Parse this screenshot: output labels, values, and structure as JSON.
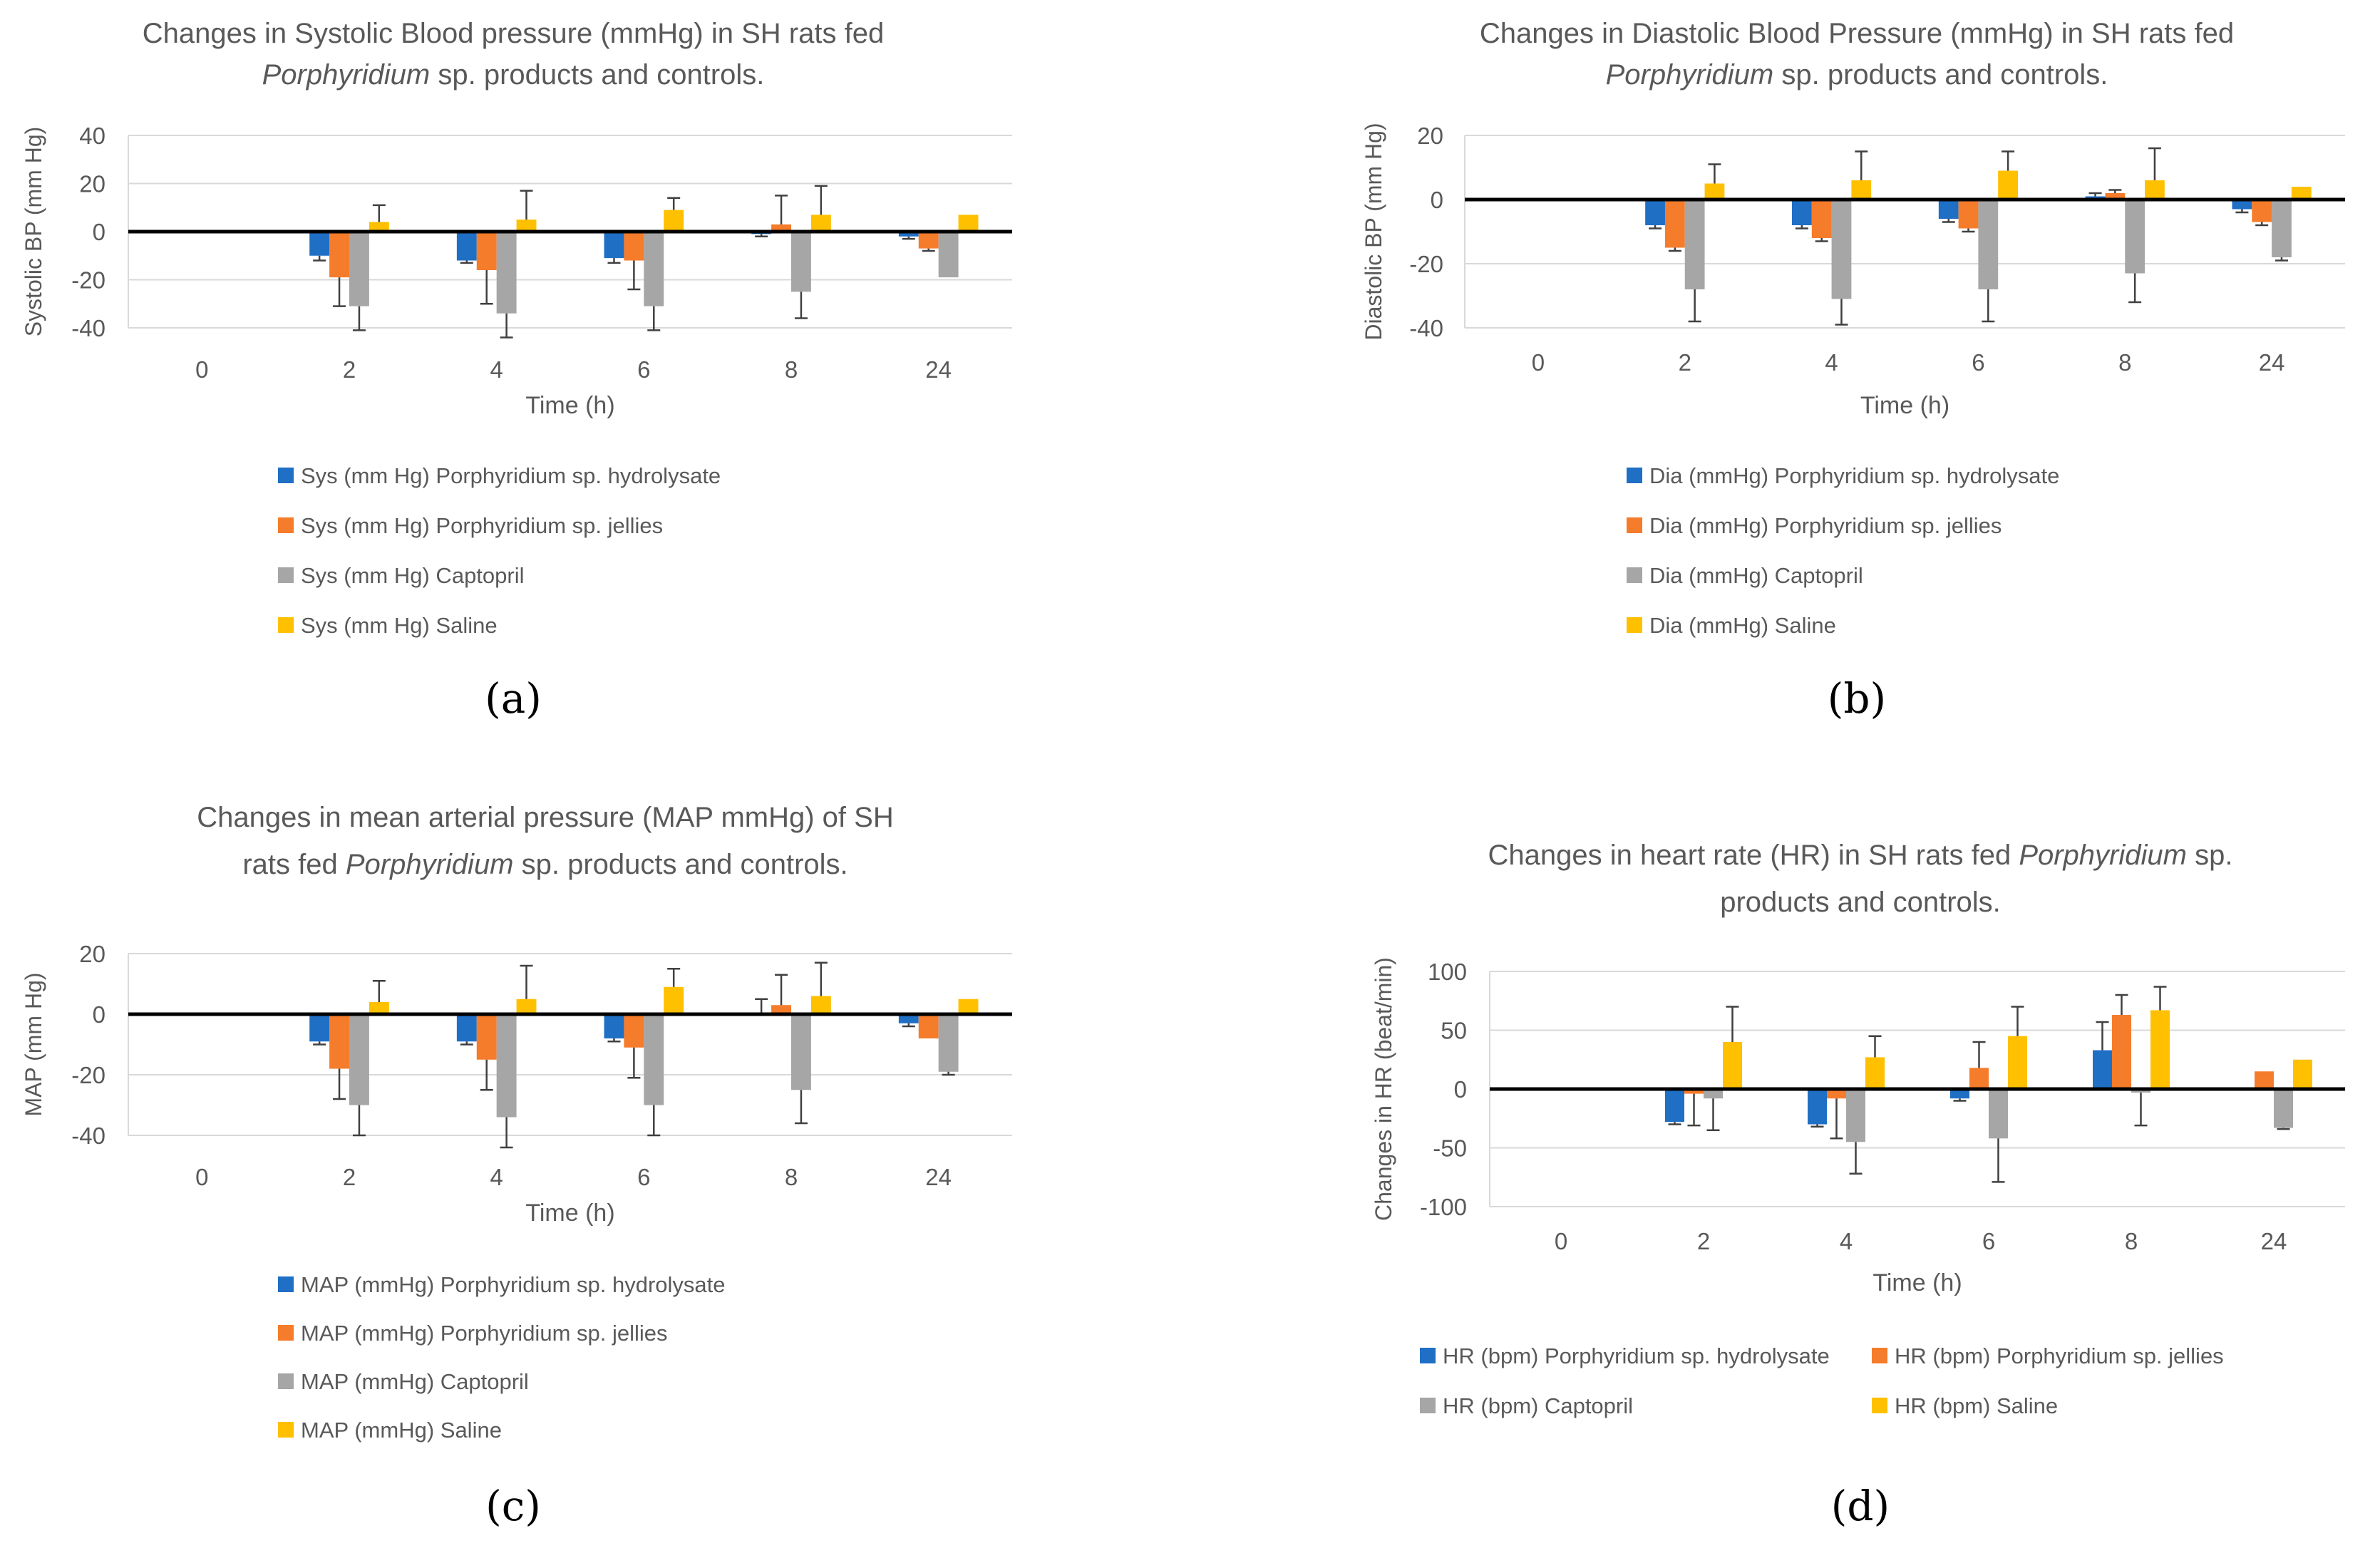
{
  "colors": {
    "hydrolysate": "#1f6fc5",
    "jellies": "#f57c2b",
    "captopril": "#a6a6a6",
    "saline": "#ffc000",
    "text": "#595959",
    "grid": "#d9d9d9",
    "errorbar": "#404040"
  },
  "chart_data": [
    {
      "type": "bar",
      "panel_label": "(a)",
      "title_line1": "Changes in Systolic Blood pressure (mmHg) in SH rats fed",
      "title_italic": "Porphyridium",
      "title_line2_rest": " sp. products and controls.",
      "xlabel": "Time (h)",
      "ylabel": "Systolic BP (mm Hg)",
      "ylim": [
        -40,
        40
      ],
      "yticks": [
        40,
        20,
        0,
        -20,
        -40
      ],
      "categories": [
        "0",
        "2",
        "4",
        "6",
        "8",
        "24"
      ],
      "series": [
        {
          "name": "Sys (mm Hg) Porphyridium sp. hydrolysate",
          "color_key": "hydrolysate",
          "values": [
            0,
            -10,
            -12,
            -11,
            -1,
            -2
          ],
          "errors": [
            0,
            2,
            1,
            2,
            1,
            1
          ]
        },
        {
          "name": "Sys (mm Hg) Porphyridium sp. jellies",
          "color_key": "jellies",
          "values": [
            0,
            -19,
            -16,
            -12,
            3,
            -7
          ],
          "errors": [
            0,
            12,
            14,
            12,
            12,
            1
          ]
        },
        {
          "name": "Sys (mm Hg) Captopril",
          "color_key": "captopril",
          "values": [
            0,
            -31,
            -34,
            -31,
            -25,
            -19
          ],
          "errors": [
            0,
            10,
            10,
            10,
            11,
            0
          ]
        },
        {
          "name": "Sys (mm Hg) Saline",
          "color_key": "saline",
          "values": [
            0,
            4,
            5,
            9,
            7,
            7
          ],
          "errors": [
            0,
            7,
            12,
            5,
            12,
            0
          ]
        }
      ]
    },
    {
      "type": "bar",
      "panel_label": "(b)",
      "title_line1": "Changes in Diastolic Blood Pressure (mmHg) in SH rats fed",
      "title_italic": "Porphyridium",
      "title_line2_rest": " sp. products and controls.",
      "xlabel": "Time (h)",
      "ylabel": "Diastolic BP (mm Hg)",
      "ylim": [
        -40,
        20
      ],
      "yticks": [
        20,
        0,
        -20,
        -40
      ],
      "categories": [
        "0",
        "2",
        "4",
        "6",
        "8",
        "24"
      ],
      "series": [
        {
          "name": "Dia (mmHg) Porphyridium sp. hydrolysate",
          "color_key": "hydrolysate",
          "values": [
            0,
            -8,
            -8,
            -6,
            1,
            -3
          ],
          "errors": [
            0,
            1,
            1,
            1,
            1,
            1
          ]
        },
        {
          "name": "Dia (mmHg) Porphyridium sp. jellies",
          "color_key": "jellies",
          "values": [
            0,
            -15,
            -12,
            -9,
            2,
            -7
          ],
          "errors": [
            0,
            1,
            1,
            1,
            1,
            1
          ]
        },
        {
          "name": "Dia (mmHg) Captopril",
          "color_key": "captopril",
          "values": [
            0,
            -28,
            -31,
            -28,
            -23,
            -18
          ],
          "errors": [
            0,
            10,
            8,
            10,
            9,
            1
          ]
        },
        {
          "name": "Dia (mmHg) Saline",
          "color_key": "saline",
          "values": [
            0,
            5,
            6,
            9,
            6,
            4
          ],
          "errors": [
            0,
            6,
            9,
            6,
            10,
            0
          ]
        }
      ]
    },
    {
      "type": "bar",
      "panel_label": "(c)",
      "title_line1": "Changes in mean arterial pressure (MAP mmHg) of SH",
      "title_prefix2": "rats fed ",
      "title_italic": "Porphyridium",
      "title_line2_rest": " sp. products and controls.",
      "xlabel": "Time (h)",
      "ylabel": "MAP (mm Hg)",
      "ylim": [
        -40,
        20
      ],
      "yticks": [
        20,
        0,
        -20,
        -40
      ],
      "categories": [
        "0",
        "2",
        "4",
        "6",
        "8",
        "24"
      ],
      "series": [
        {
          "name": "MAP (mmHg) Porphyridium sp. hydrolysate",
          "color_key": "hydrolysate",
          "values": [
            0,
            -9,
            -9,
            -8,
            0,
            -3
          ],
          "errors": [
            0,
            1,
            1,
            1,
            5,
            1
          ]
        },
        {
          "name": "MAP (mmHg) Porphyridium sp. jellies",
          "color_key": "jellies",
          "values": [
            0,
            -18,
            -15,
            -11,
            3,
            -8
          ],
          "errors": [
            0,
            10,
            10,
            10,
            10,
            0
          ]
        },
        {
          "name": "MAP (mmHg) Captopril",
          "color_key": "captopril",
          "values": [
            0,
            -30,
            -34,
            -30,
            -25,
            -19
          ],
          "errors": [
            0,
            10,
            10,
            10,
            11,
            1
          ]
        },
        {
          "name": "MAP (mmHg) Saline",
          "color_key": "saline",
          "values": [
            0,
            4,
            5,
            9,
            6,
            5
          ],
          "errors": [
            0,
            7,
            11,
            6,
            11,
            0
          ]
        }
      ]
    },
    {
      "type": "bar",
      "panel_label": "(d)",
      "title_prefix1": "Changes in heart rate (HR) in SH rats fed ",
      "title_italic": "Porphyridium",
      "title_line1_suffix": " sp.",
      "title_line2": "products and controls.",
      "xlabel": "Time (h)",
      "ylabel": "Changes in HR (beat/min)",
      "ylim": [
        -100,
        100
      ],
      "yticks": [
        100,
        50,
        0,
        -50,
        -100
      ],
      "categories": [
        "0",
        "2",
        "4",
        "6",
        "8",
        "24"
      ],
      "series": [
        {
          "name": "HR (bpm) Porphyridium sp. hydrolysate",
          "color_key": "hydrolysate",
          "values": [
            0,
            -28,
            -30,
            -8,
            33,
            0
          ],
          "errors": [
            0,
            2,
            2,
            2,
            24,
            0
          ]
        },
        {
          "name": "HR (bpm) Porphyridium sp. jellies",
          "color_key": "jellies",
          "values": [
            0,
            -4,
            -8,
            18,
            63,
            15
          ],
          "errors": [
            0,
            27,
            34,
            22,
            17,
            0
          ]
        },
        {
          "name": "HR (bpm) Captopril",
          "color_key": "captopril",
          "values": [
            0,
            -8,
            -45,
            -42,
            -3,
            -33
          ],
          "errors": [
            0,
            27,
            27,
            37,
            28,
            1
          ]
        },
        {
          "name": "HR (bpm) Saline",
          "color_key": "saline",
          "values": [
            0,
            40,
            27,
            45,
            67,
            25
          ],
          "errors": [
            0,
            30,
            18,
            25,
            20,
            0
          ]
        }
      ]
    }
  ]
}
